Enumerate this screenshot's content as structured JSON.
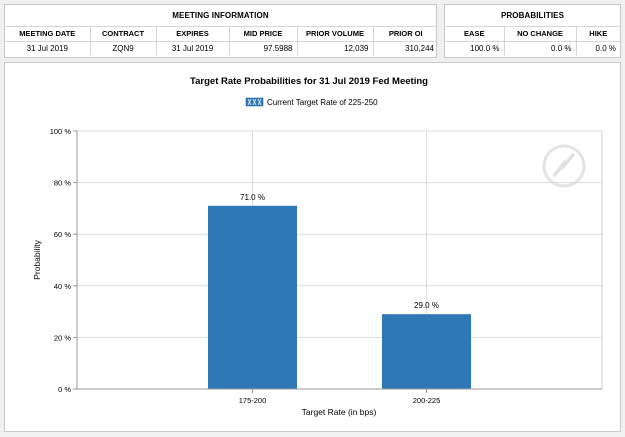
{
  "meeting_info": {
    "title": "MEETING INFORMATION",
    "columns": [
      "MEETING DATE",
      "CONTRACT",
      "EXPIRES",
      "MID PRICE",
      "PRIOR VOLUME",
      "PRIOR OI"
    ],
    "row": [
      "31 Jul 2019",
      "ZQN9",
      "31 Jul 2019",
      "97.5988",
      "12,039",
      "310,244"
    ]
  },
  "probabilities": {
    "title": "PROBABILITIES",
    "columns": [
      "EASE",
      "NO CHANGE",
      "HIKE"
    ],
    "row": [
      "100.0 %",
      "0.0 %",
      "0.0 %"
    ]
  },
  "chart_data": {
    "type": "bar",
    "title": "Target Rate Probabilities for 31 Jul 2019 Fed Meeting",
    "legend": "Current Target Rate of 225-250",
    "legend_placement": "top-center",
    "categories": [
      "175-200",
      "200-225"
    ],
    "values": [
      71.0,
      29.0
    ],
    "data_labels": [
      "71.0 %",
      "29.0 %"
    ],
    "xlabel": "Target Rate (in bps)",
    "ylabel": "Probability",
    "ylim": [
      0,
      100
    ],
    "yticks": [
      0,
      20,
      40,
      60,
      80,
      100
    ],
    "ytick_labels": [
      "0 %",
      "20 %",
      "40 %",
      "60 %",
      "80 %",
      "100 %"
    ],
    "grid": true,
    "bar_color": "#2e78b8"
  }
}
